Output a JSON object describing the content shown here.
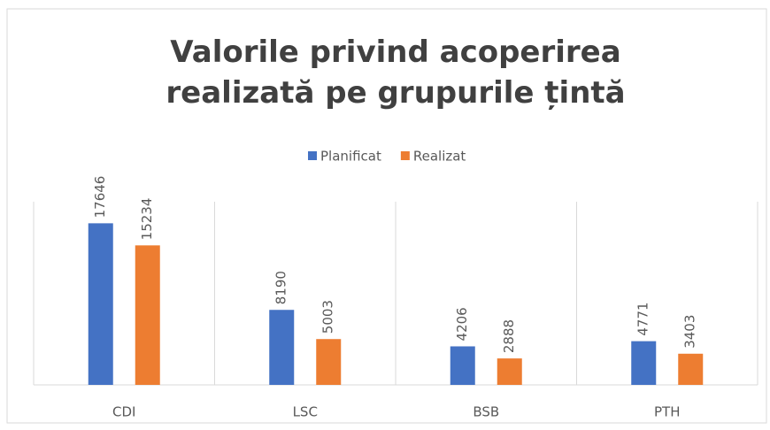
{
  "chart_data": {
    "type": "bar",
    "title": "Valorile privind acoperirea realizată pe grupurile țintă",
    "categories": [
      "CDI",
      "LSC",
      "BSB",
      "PTH"
    ],
    "series": [
      {
        "name": "Planificat",
        "color": "#4472c4",
        "values": [
          17646,
          8190,
          4206,
          4771
        ]
      },
      {
        "name": "Realizat",
        "color": "#ed7d31",
        "values": [
          15234,
          5003,
          2888,
          3403
        ]
      }
    ],
    "ylim": [
      0,
      20000
    ],
    "legend": "top"
  }
}
